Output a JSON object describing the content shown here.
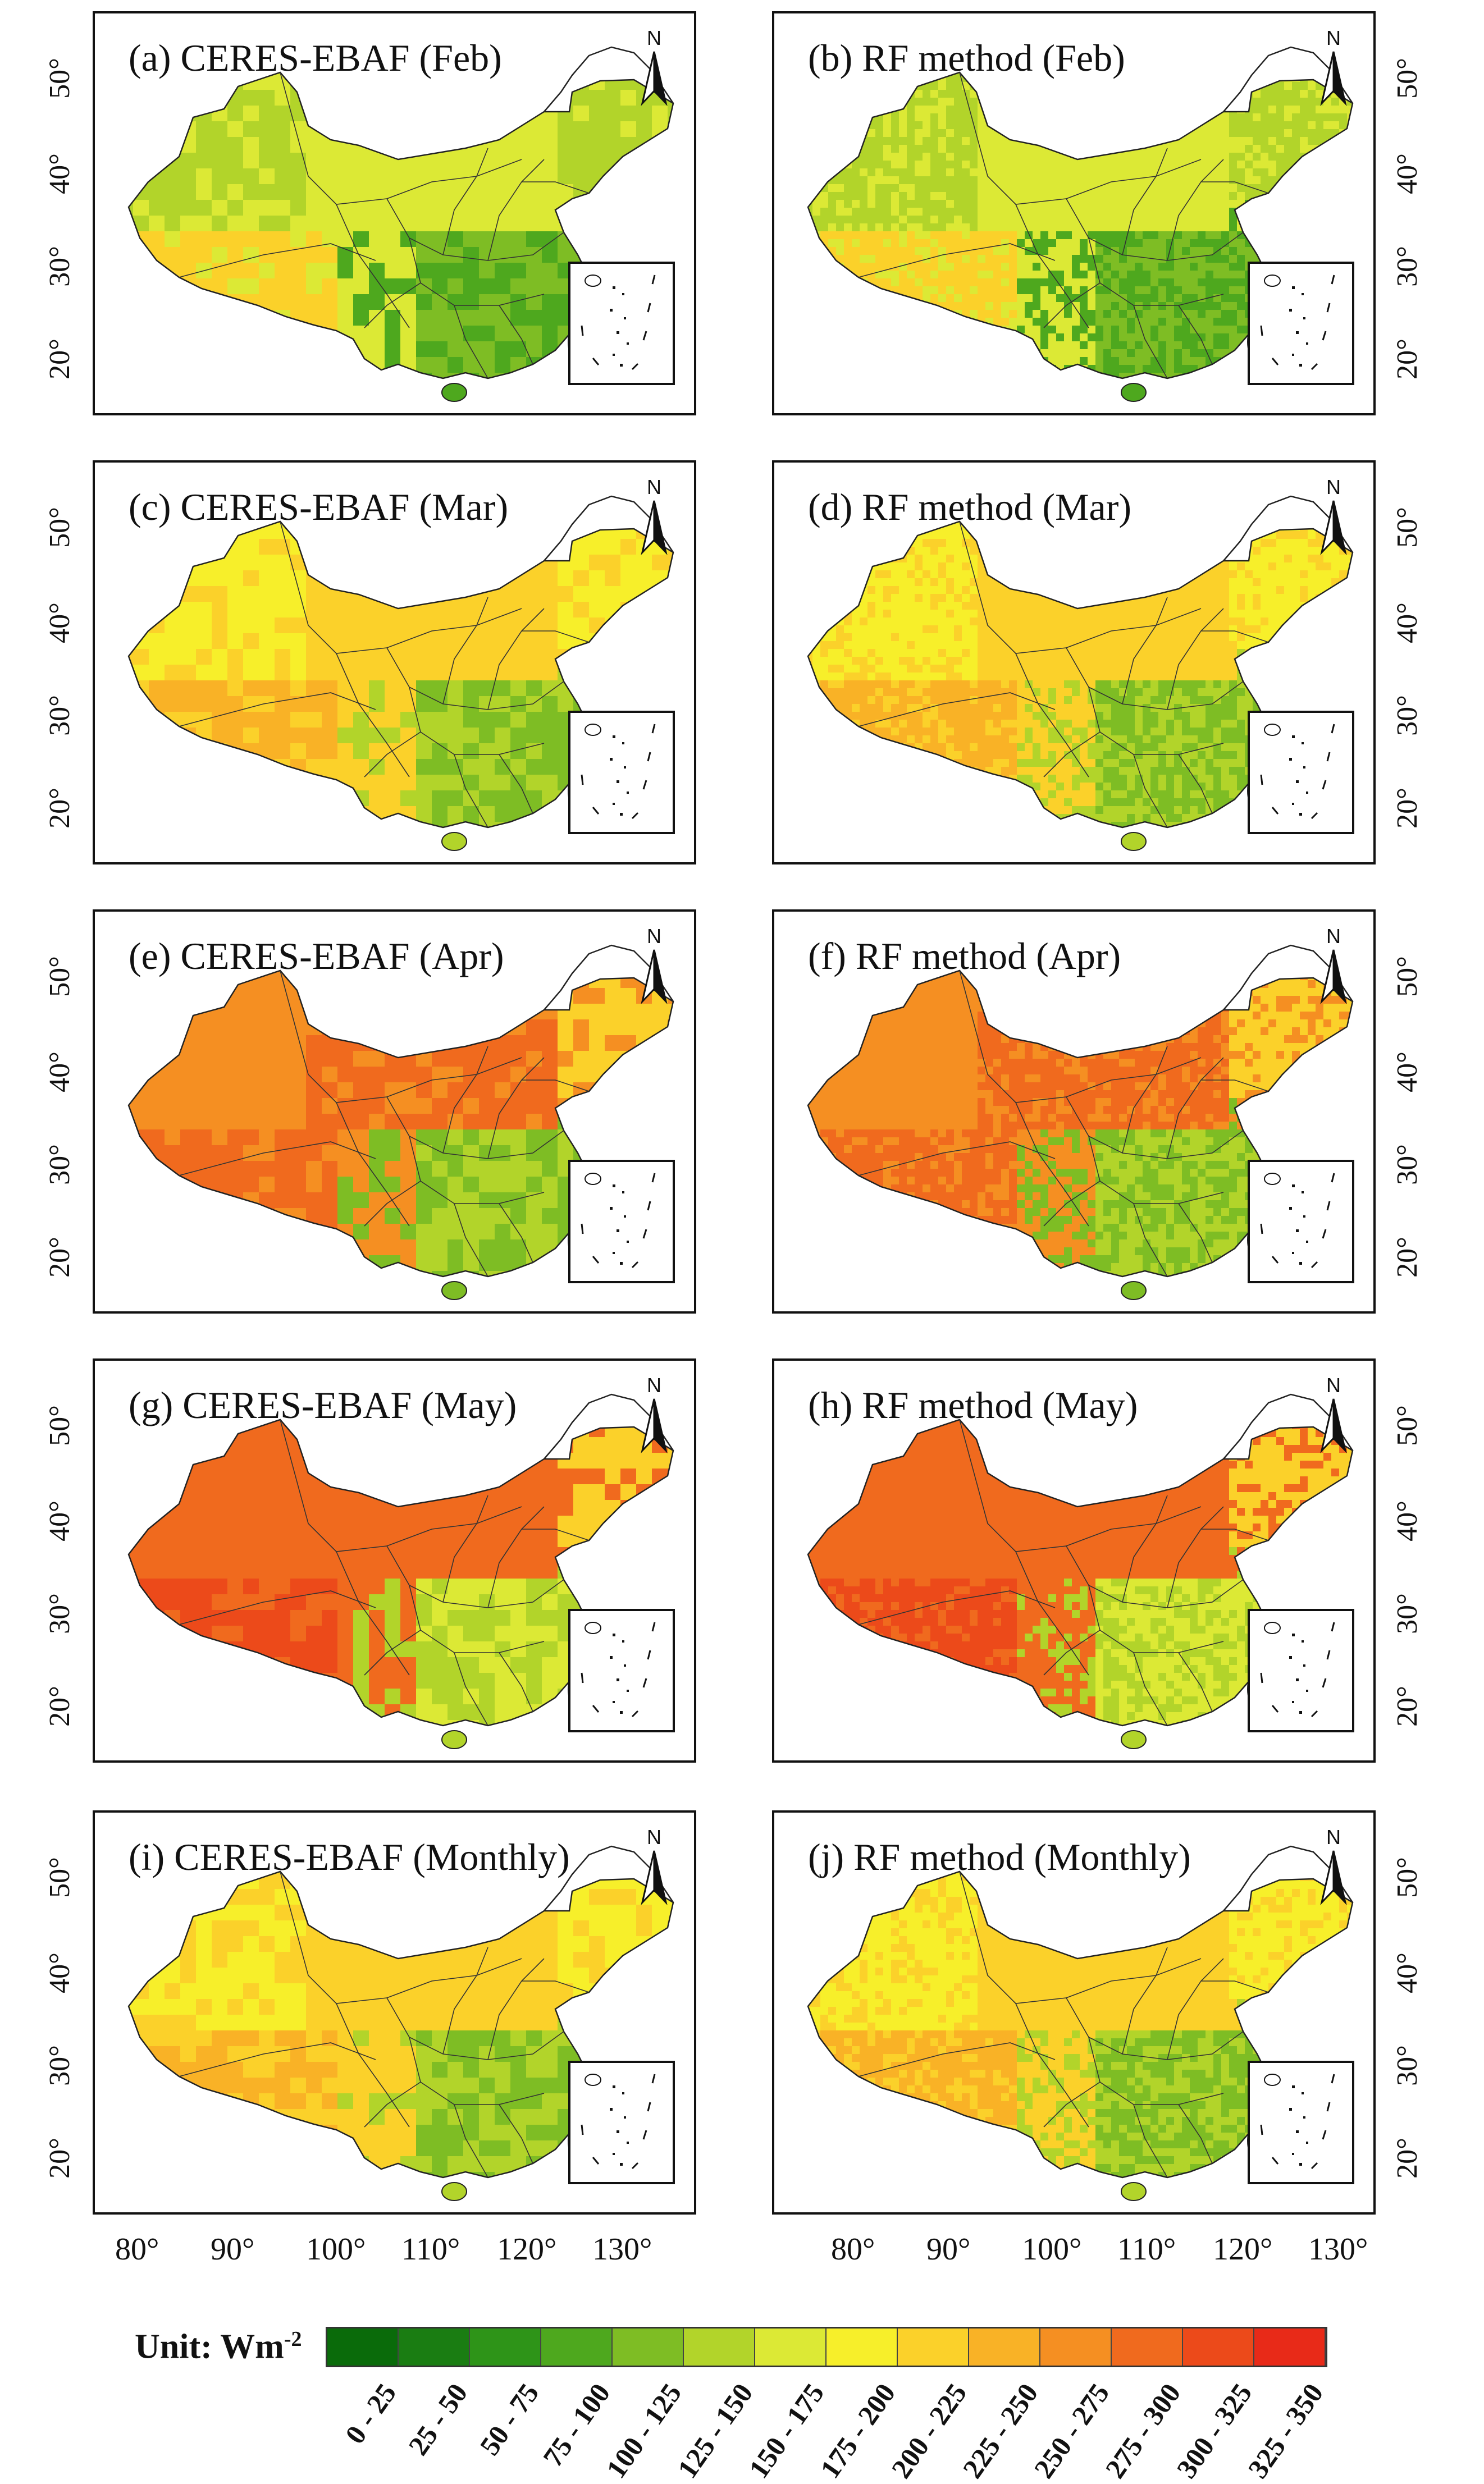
{
  "panels": [
    {
      "id": "a",
      "title": "(a)  CERES-EBAF (Feb)",
      "side": "left",
      "tone": "low"
    },
    {
      "id": "b",
      "title": "(b)  RF method (Feb)",
      "side": "right",
      "tone": "low"
    },
    {
      "id": "c",
      "title": "(c)  CERES-EBAF (Mar)",
      "side": "left",
      "tone": "mid"
    },
    {
      "id": "d",
      "title": "(d)  RF method (Mar)",
      "side": "right",
      "tone": "mid"
    },
    {
      "id": "e",
      "title": "(e)  CERES-EBAF (Apr)",
      "side": "left",
      "tone": "high"
    },
    {
      "id": "f",
      "title": "(f)  RF method (Apr)",
      "side": "right",
      "tone": "high"
    },
    {
      "id": "g",
      "title": "(g)  CERES-EBAF (May)",
      "side": "left",
      "tone": "vhigh"
    },
    {
      "id": "h",
      "title": "(h)  RF method (May)",
      "side": "right",
      "tone": "vhigh"
    },
    {
      "id": "i",
      "title": "(i)  CERES-EBAF (Monthly)",
      "side": "left",
      "tone": "mid"
    },
    {
      "id": "j",
      "title": "(j)  RF method (Monthly)",
      "side": "right",
      "tone": "mid"
    }
  ],
  "north_label": "N",
  "lat_ticks": [
    "50°",
    "40°",
    "30°",
    "20°"
  ],
  "lon_ticks": [
    "80°",
    "90°",
    "100°",
    "110°",
    "120°",
    "130°"
  ],
  "legend": {
    "unit_label": "Unit: Wm",
    "unit_sup": "-2",
    "classes": [
      {
        "label": "0 - 25",
        "color": "#0a6b0a"
      },
      {
        "label": "25 - 50",
        "color": "#1a7d12"
      },
      {
        "label": "50 - 75",
        "color": "#2e9418"
      },
      {
        "label": "75 - 100",
        "color": "#4ea81e"
      },
      {
        "label": "100 - 125",
        "color": "#7ebd24"
      },
      {
        "label": "125 - 150",
        "color": "#b2d42a"
      },
      {
        "label": "150 - 175",
        "color": "#dce935"
      },
      {
        "label": "175 - 200",
        "color": "#f7ef2a"
      },
      {
        "label": "200 - 225",
        "color": "#fbd12a"
      },
      {
        "label": "225 - 250",
        "color": "#f9b226"
      },
      {
        "label": "250 - 275",
        "color": "#f58f22"
      },
      {
        "label": "275 - 300",
        "color": "#f06a1e"
      },
      {
        "label": "300 - 325",
        "color": "#ec4a1a"
      },
      {
        "label": "325 - 350",
        "color": "#e82a18"
      }
    ]
  }
}
